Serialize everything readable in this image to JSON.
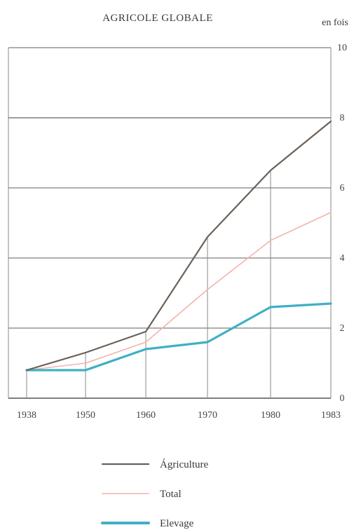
{
  "chart_data": {
    "type": "line",
    "title": "AGRICOLE GLOBALE",
    "unit_label": "en  fois",
    "x": [
      1938,
      1950,
      1960,
      1970,
      1980,
      1983
    ],
    "x_tick_labels": [
      "1938",
      "1950",
      "1960",
      "1970",
      "1980",
      "1983"
    ],
    "y_tick_labels": [
      "0",
      "2",
      "4",
      "6",
      "8",
      "10"
    ],
    "ylim": [
      0,
      10
    ],
    "grid": true,
    "series": [
      {
        "name": "Agriculture",
        "color": "#6b6158",
        "values": [
          0.8,
          1.3,
          1.9,
          4.6,
          6.5,
          7.9
        ]
      },
      {
        "name": "Total",
        "color": "#f4b3ad",
        "values": [
          0.8,
          1.0,
          1.6,
          3.1,
          4.5,
          5.3
        ]
      },
      {
        "name": "Elevage",
        "color": "#3fb0c4",
        "values": [
          0.8,
          0.8,
          1.4,
          1.6,
          2.6,
          2.7
        ]
      }
    ],
    "legend": {
      "placement": "bottom",
      "entries": [
        "Ágriculture",
        "Total",
        "Elevage"
      ]
    }
  }
}
